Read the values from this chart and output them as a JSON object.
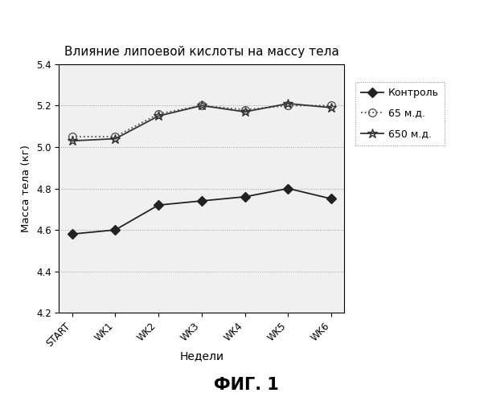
{
  "title": "Влияние липоевой кислоты на массу тела",
  "xlabel": "Недели",
  "ylabel": "Масса тела (кг)",
  "fig_label": "ФИГ. 1",
  "x_labels": [
    "START",
    "WK1",
    "WK2",
    "WK3",
    "WK4",
    "WK5",
    "WK6"
  ],
  "series": [
    {
      "label": "Контроль",
      "values": [
        4.58,
        4.6,
        4.72,
        4.74,
        4.76,
        4.8,
        4.75
      ],
      "color": "#222222",
      "marker": "D",
      "marker_size": 6,
      "linestyle": "-",
      "linewidth": 1.3,
      "fillstyle": "full",
      "zorder": 3
    },
    {
      "label": "65 м.д.",
      "values": [
        5.05,
        5.05,
        5.16,
        5.2,
        5.18,
        5.2,
        5.2
      ],
      "color": "#555555",
      "marker": "o",
      "marker_size": 7,
      "linestyle": ":",
      "linewidth": 1.3,
      "fillstyle": "none",
      "zorder": 3
    },
    {
      "label": "650 м.д.",
      "values": [
        5.03,
        5.04,
        5.15,
        5.2,
        5.17,
        5.21,
        5.19
      ],
      "color": "#333333",
      "marker": "*",
      "marker_size": 9,
      "linestyle": "-",
      "linewidth": 1.3,
      "fillstyle": "none",
      "zorder": 3
    }
  ],
  "ylim": [
    4.2,
    5.4
  ],
  "yticks": [
    4.2,
    4.4,
    4.6,
    4.8,
    5.0,
    5.2,
    5.4
  ],
  "background_color": "#f5f5f5",
  "grid_color": "#888888",
  "plot_bg": "#f0f0f0"
}
